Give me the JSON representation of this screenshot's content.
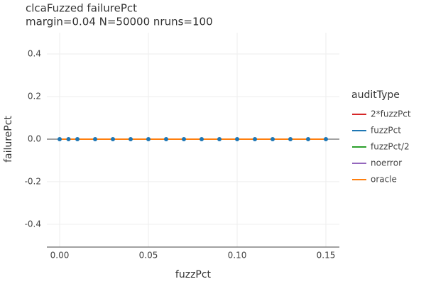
{
  "chart_data": {
    "type": "line",
    "title": "clcaFuzzed failurePct",
    "subtitle": "margin=0.04 N=50000 nruns=100",
    "xlabel": "fuzzPct",
    "ylabel": "failurePct",
    "legend_title": "auditType",
    "x": [
      0,
      0.005,
      0.01,
      0.02,
      0.03,
      0.04,
      0.05,
      0.06,
      0.07,
      0.08,
      0.09,
      0.1,
      0.11,
      0.12,
      0.13,
      0.14,
      0.15
    ],
    "series": [
      {
        "name": "2*fuzzPct",
        "color": "#d62728",
        "mode": "lines",
        "values": [
          0,
          0,
          0,
          0,
          0,
          0,
          0,
          0,
          0,
          0,
          0,
          0,
          0,
          0,
          0,
          0,
          0
        ]
      },
      {
        "name": "fuzzPct",
        "color": "#1f77b4",
        "mode": "lines+markers",
        "values": [
          0,
          0,
          0,
          0,
          0,
          0,
          0,
          0,
          0,
          0,
          0,
          0,
          0,
          0,
          0,
          0,
          0
        ]
      },
      {
        "name": "fuzzPct/2",
        "color": "#2ca02c",
        "mode": "lines",
        "values": [
          0,
          0,
          0,
          0,
          0,
          0,
          0,
          0,
          0,
          0,
          0,
          0,
          0,
          0,
          0,
          0,
          0
        ]
      },
      {
        "name": "noerror",
        "color": "#9467bd",
        "mode": "lines",
        "values": [
          0,
          0,
          0,
          0,
          0,
          0,
          0,
          0,
          0,
          0,
          0,
          0,
          0,
          0,
          0,
          0,
          0
        ]
      },
      {
        "name": "oracle",
        "color": "#ff7f0e",
        "mode": "lines",
        "values": [
          0,
          0,
          0,
          0,
          0,
          0,
          0,
          0,
          0,
          0,
          0,
          0,
          0,
          0,
          0,
          0,
          0
        ]
      }
    ],
    "xlim": [
      -0.0072,
      0.1576
    ],
    "ylim": [
      -0.507,
      0.5
    ],
    "xticks": [
      {
        "value": 0,
        "label": "0.00"
      },
      {
        "value": 0.05,
        "label": "0.05"
      },
      {
        "value": 0.1,
        "label": "0.10"
      },
      {
        "value": 0.15,
        "label": "0.15"
      }
    ],
    "yticks": [
      -0.4,
      -0.2,
      {
        "value": 0,
        "label": "0.0"
      },
      0.2,
      0.4
    ],
    "grid": true,
    "legend": "right"
  }
}
